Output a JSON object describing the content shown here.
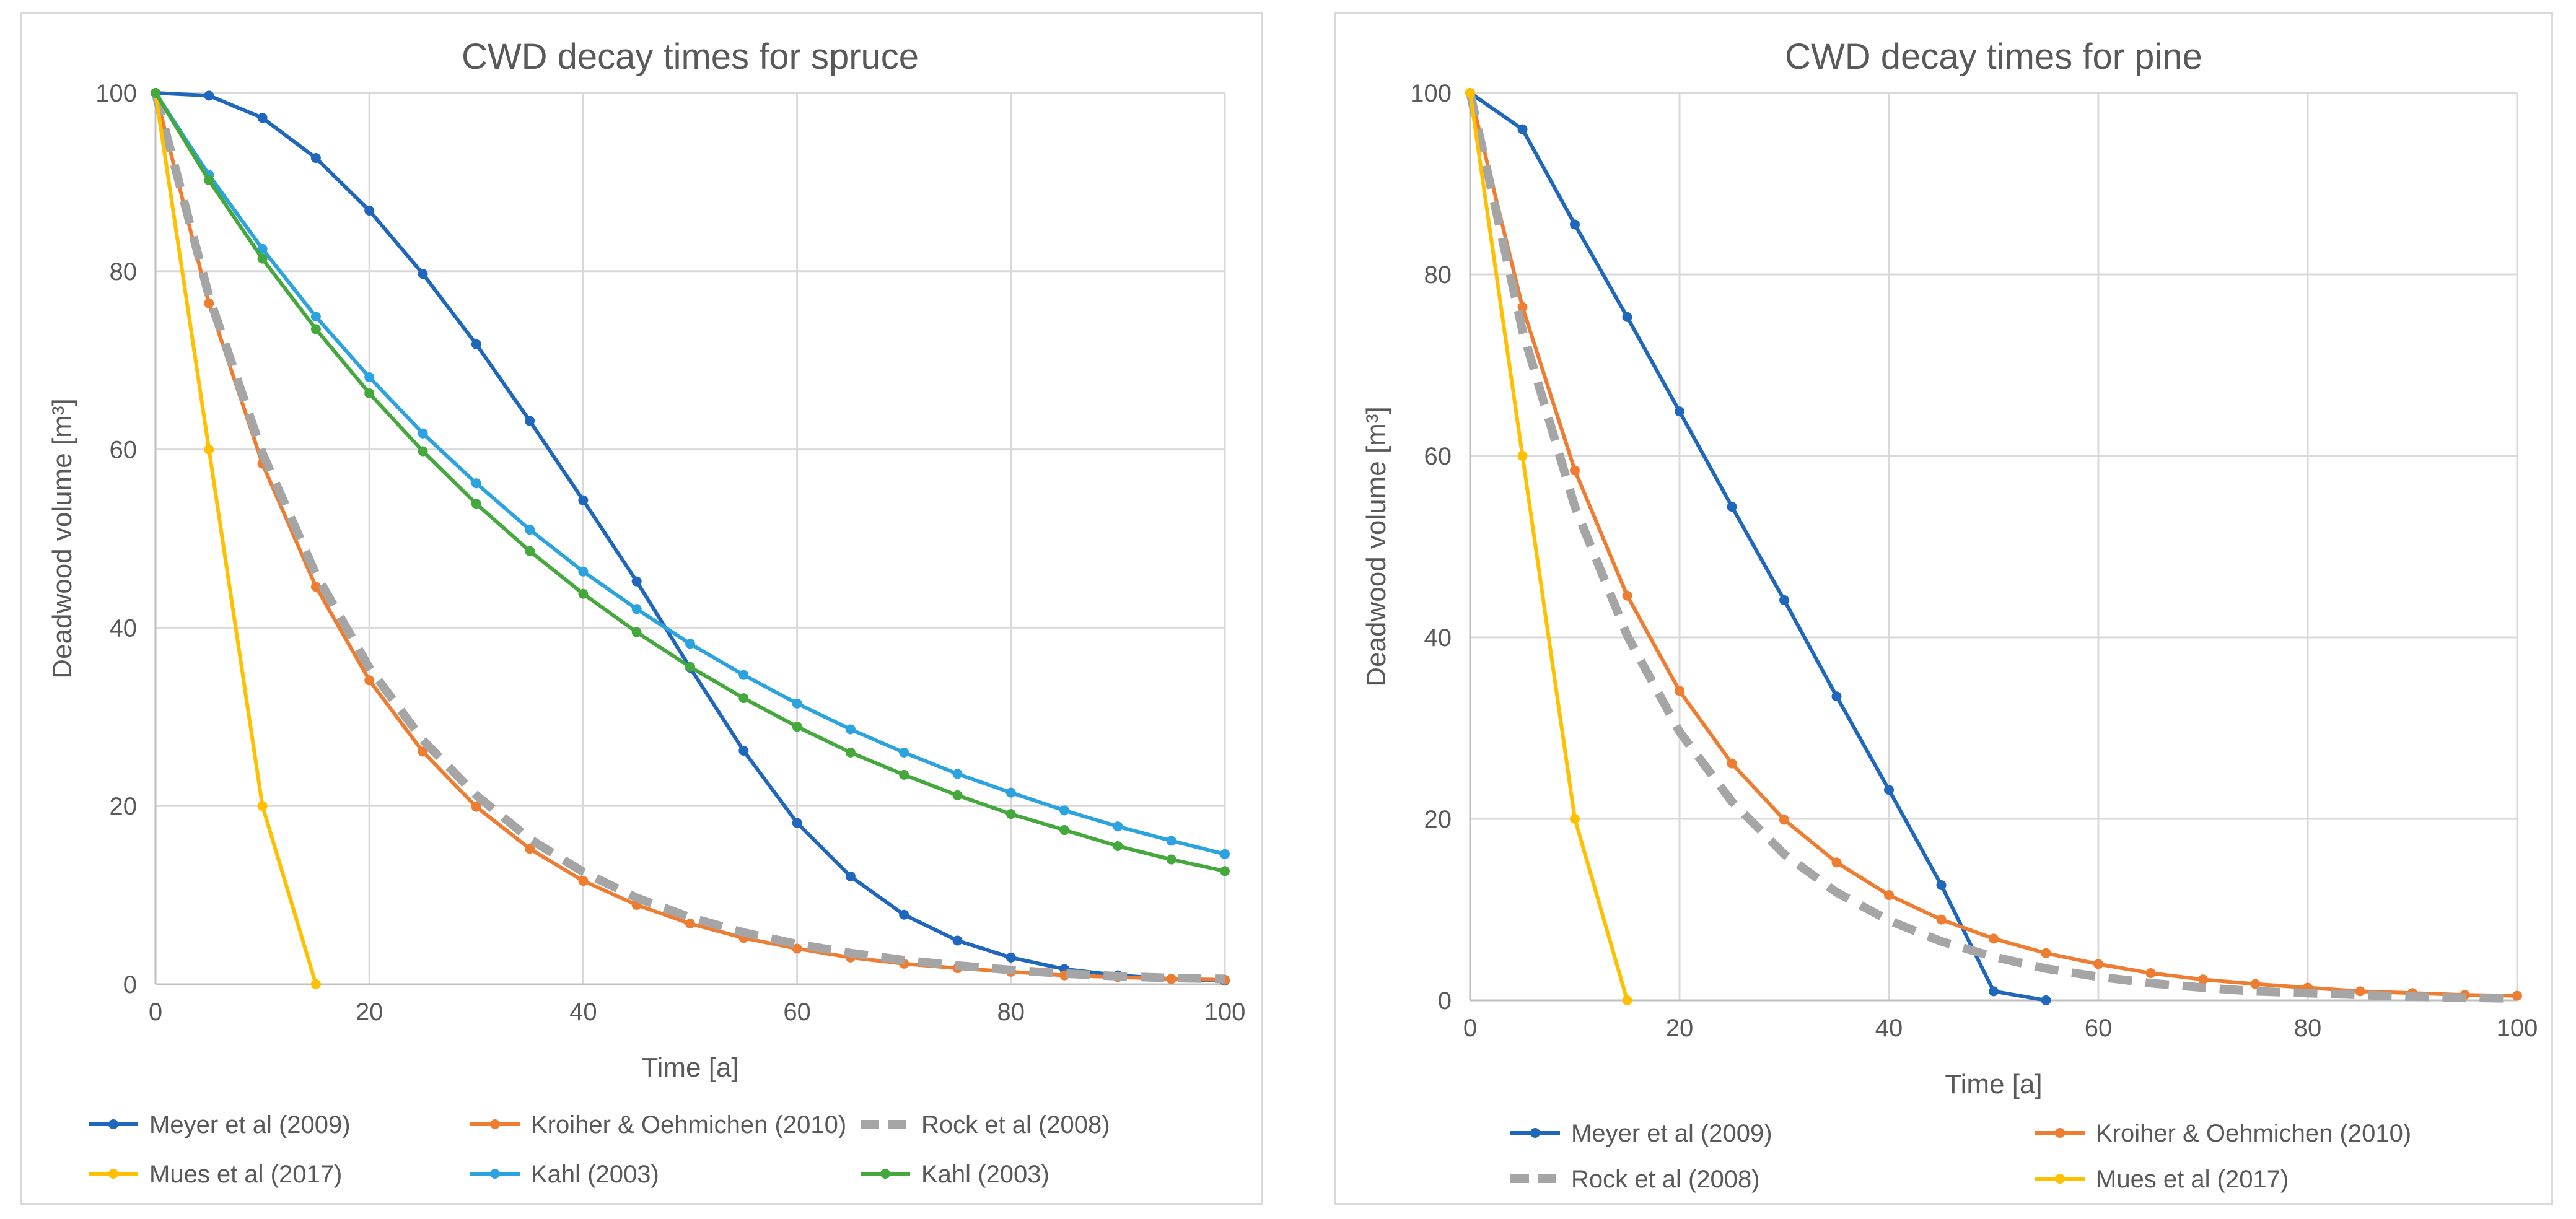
{
  "chart_data": [
    {
      "type": "line",
      "title": "CWD decay times for spruce",
      "xlabel": "Time [a]",
      "ylabel": "Deadwood volume [m³]",
      "xlim": [
        0,
        100
      ],
      "ylim": [
        0,
        100
      ],
      "xticks": [
        0,
        20,
        40,
        60,
        80,
        100
      ],
      "yticks": [
        0,
        20,
        40,
        60,
        80,
        100
      ],
      "grid": true,
      "legend_position": "bottom",
      "series": [
        {
          "name": "Meyer et al (2009)",
          "color": "#1f67bd",
          "dashed": false,
          "markers": true,
          "x": [
            0,
            5,
            10,
            15,
            20,
            25,
            30,
            35,
            40,
            45,
            50,
            55,
            60,
            65,
            70,
            75,
            80,
            85,
            90,
            95,
            100
          ],
          "y": [
            100,
            99.7,
            97.2,
            92.7,
            86.8,
            79.7,
            71.8,
            63.2,
            54.3,
            45.2,
            35.5,
            26.2,
            18.1,
            12.1,
            7.8,
            4.9,
            3.0,
            1.7,
            1.0,
            0.6,
            0.4
          ]
        },
        {
          "name": "Kroiher & Oehmichen (2010)",
          "color": "#ef7d31",
          "dashed": false,
          "markers": true,
          "x": [
            0,
            5,
            10,
            15,
            20,
            25,
            30,
            35,
            40,
            45,
            50,
            55,
            60,
            65,
            70,
            75,
            80,
            85,
            90,
            95,
            100
          ],
          "y": [
            100,
            76.4,
            58.4,
            44.6,
            34.1,
            26.1,
            19.9,
            15.2,
            11.6,
            8.9,
            6.8,
            5.2,
            4.0,
            3.0,
            2.3,
            1.8,
            1.4,
            1.0,
            0.8,
            0.6,
            0.5
          ]
        },
        {
          "name": "Rock et al (2008)",
          "color": "#a5a5a5",
          "dashed": true,
          "markers": false,
          "x": [
            0,
            5,
            10,
            15,
            20,
            25,
            30,
            35,
            40,
            45,
            50,
            55,
            60,
            65,
            70,
            75,
            80,
            85,
            90,
            95,
            100
          ],
          "y": [
            100,
            77.2,
            59.6,
            46.0,
            35.5,
            27.4,
            21.2,
            16.3,
            12.6,
            9.7,
            7.5,
            5.8,
            4.5,
            3.5,
            2.7,
            2.1,
            1.6,
            1.2,
            0.9,
            0.7,
            0.6
          ]
        },
        {
          "name": "Mues et al (2017)",
          "color": "#ffc000",
          "dashed": false,
          "markers": true,
          "x": [
            0,
            5,
            10,
            15
          ],
          "y": [
            100,
            60,
            20,
            0
          ]
        },
        {
          "name": "Kahl (2003)",
          "color": "#2aa3de",
          "dashed": false,
          "markers": true,
          "x": [
            0,
            5,
            10,
            15,
            20,
            25,
            30,
            35,
            40,
            45,
            50,
            55,
            60,
            65,
            70,
            75,
            80,
            85,
            90,
            95,
            100
          ],
          "y": [
            100,
            90.8,
            82.5,
            74.9,
            68.1,
            61.8,
            56.2,
            51.0,
            46.3,
            42.1,
            38.2,
            34.7,
            31.5,
            28.6,
            26.0,
            23.6,
            21.5,
            19.5,
            17.7,
            16.1,
            14.6
          ]
        },
        {
          "name": "Kahl (2003)",
          "color": "#45a83d",
          "dashed": false,
          "markers": true,
          "x": [
            0,
            5,
            10,
            15,
            20,
            25,
            30,
            35,
            40,
            45,
            50,
            55,
            60,
            65,
            70,
            75,
            80,
            85,
            90,
            95,
            100
          ],
          "y": [
            100,
            90.2,
            81.4,
            73.5,
            66.3,
            59.8,
            53.9,
            48.6,
            43.8,
            39.5,
            35.6,
            32.1,
            28.9,
            26.0,
            23.5,
            21.2,
            19.1,
            17.3,
            15.5,
            14.0,
            12.7
          ]
        }
      ]
    },
    {
      "type": "line",
      "title": "CWD decay times for pine",
      "xlabel": "Time [a]",
      "ylabel": "Deadwood volume [m³]",
      "xlim": [
        0,
        100
      ],
      "ylim": [
        0,
        100
      ],
      "xticks": [
        0,
        20,
        40,
        60,
        80,
        100
      ],
      "yticks": [
        0,
        20,
        40,
        60,
        80,
        100
      ],
      "grid": true,
      "legend_position": "bottom",
      "series": [
        {
          "name": "Meyer et al (2009)",
          "color": "#1f67bd",
          "dashed": false,
          "markers": true,
          "x": [
            0,
            5,
            10,
            15,
            20,
            25,
            30,
            35,
            40,
            45,
            50,
            55
          ],
          "y": [
            100,
            96.0,
            85.5,
            75.3,
            64.9,
            54.4,
            44.1,
            33.5,
            23.2,
            12.7,
            1.0,
            0.0
          ]
        },
        {
          "name": "Kroiher & Oehmichen (2010)",
          "color": "#ef7d31",
          "dashed": false,
          "markers": true,
          "x": [
            0,
            5,
            10,
            15,
            20,
            25,
            30,
            35,
            40,
            45,
            50,
            55,
            60,
            65,
            70,
            75,
            80,
            85,
            90,
            95,
            100
          ],
          "y": [
            100,
            76.4,
            58.4,
            44.6,
            34.1,
            26.1,
            19.9,
            15.2,
            11.6,
            8.9,
            6.8,
            5.2,
            4.0,
            3.0,
            2.3,
            1.8,
            1.4,
            1.0,
            0.8,
            0.6,
            0.5
          ]
        },
        {
          "name": "Rock et al (2008)",
          "color": "#a5a5a5",
          "dashed": true,
          "markers": false,
          "x": [
            0,
            5,
            10,
            15,
            20,
            25,
            30,
            35,
            40,
            45,
            50,
            55,
            60,
            65,
            70,
            75,
            80,
            85,
            90,
            95,
            100
          ],
          "y": [
            100,
            73.8,
            54.4,
            40.2,
            29.6,
            21.9,
            16.1,
            11.9,
            8.8,
            6.5,
            4.8,
            3.5,
            2.6,
            1.9,
            1.4,
            1.0,
            0.8,
            0.6,
            0.4,
            0.3,
            0.2
          ]
        },
        {
          "name": "Mues et al (2017)",
          "color": "#ffc000",
          "dashed": false,
          "markers": true,
          "x": [
            0,
            5,
            10,
            15
          ],
          "y": [
            100,
            60,
            20,
            0
          ]
        }
      ]
    }
  ]
}
